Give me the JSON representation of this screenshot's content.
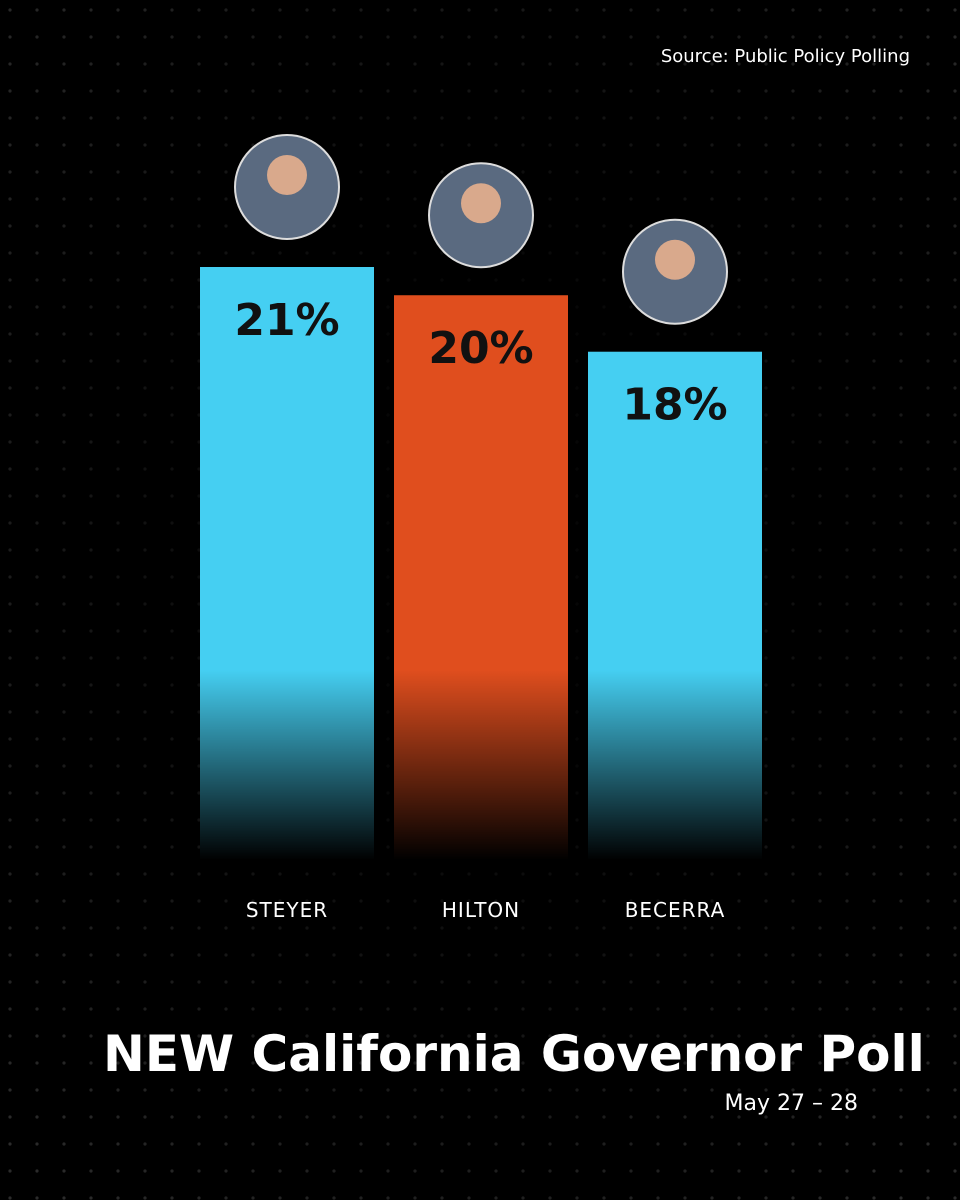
{
  "chart_data": {
    "type": "bar",
    "title": "NEW California Governor Poll",
    "subtitle": "May 27 – 28",
    "source": "Source: Public Policy Polling",
    "categories": [
      "STEYER",
      "HILTON",
      "BECERRA"
    ],
    "values": [
      21,
      20,
      18
    ],
    "value_labels": [
      "21%",
      "20%",
      "18%"
    ],
    "colors": [
      "#45cff2",
      "#e04e1e",
      "#45cff2"
    ]
  }
}
